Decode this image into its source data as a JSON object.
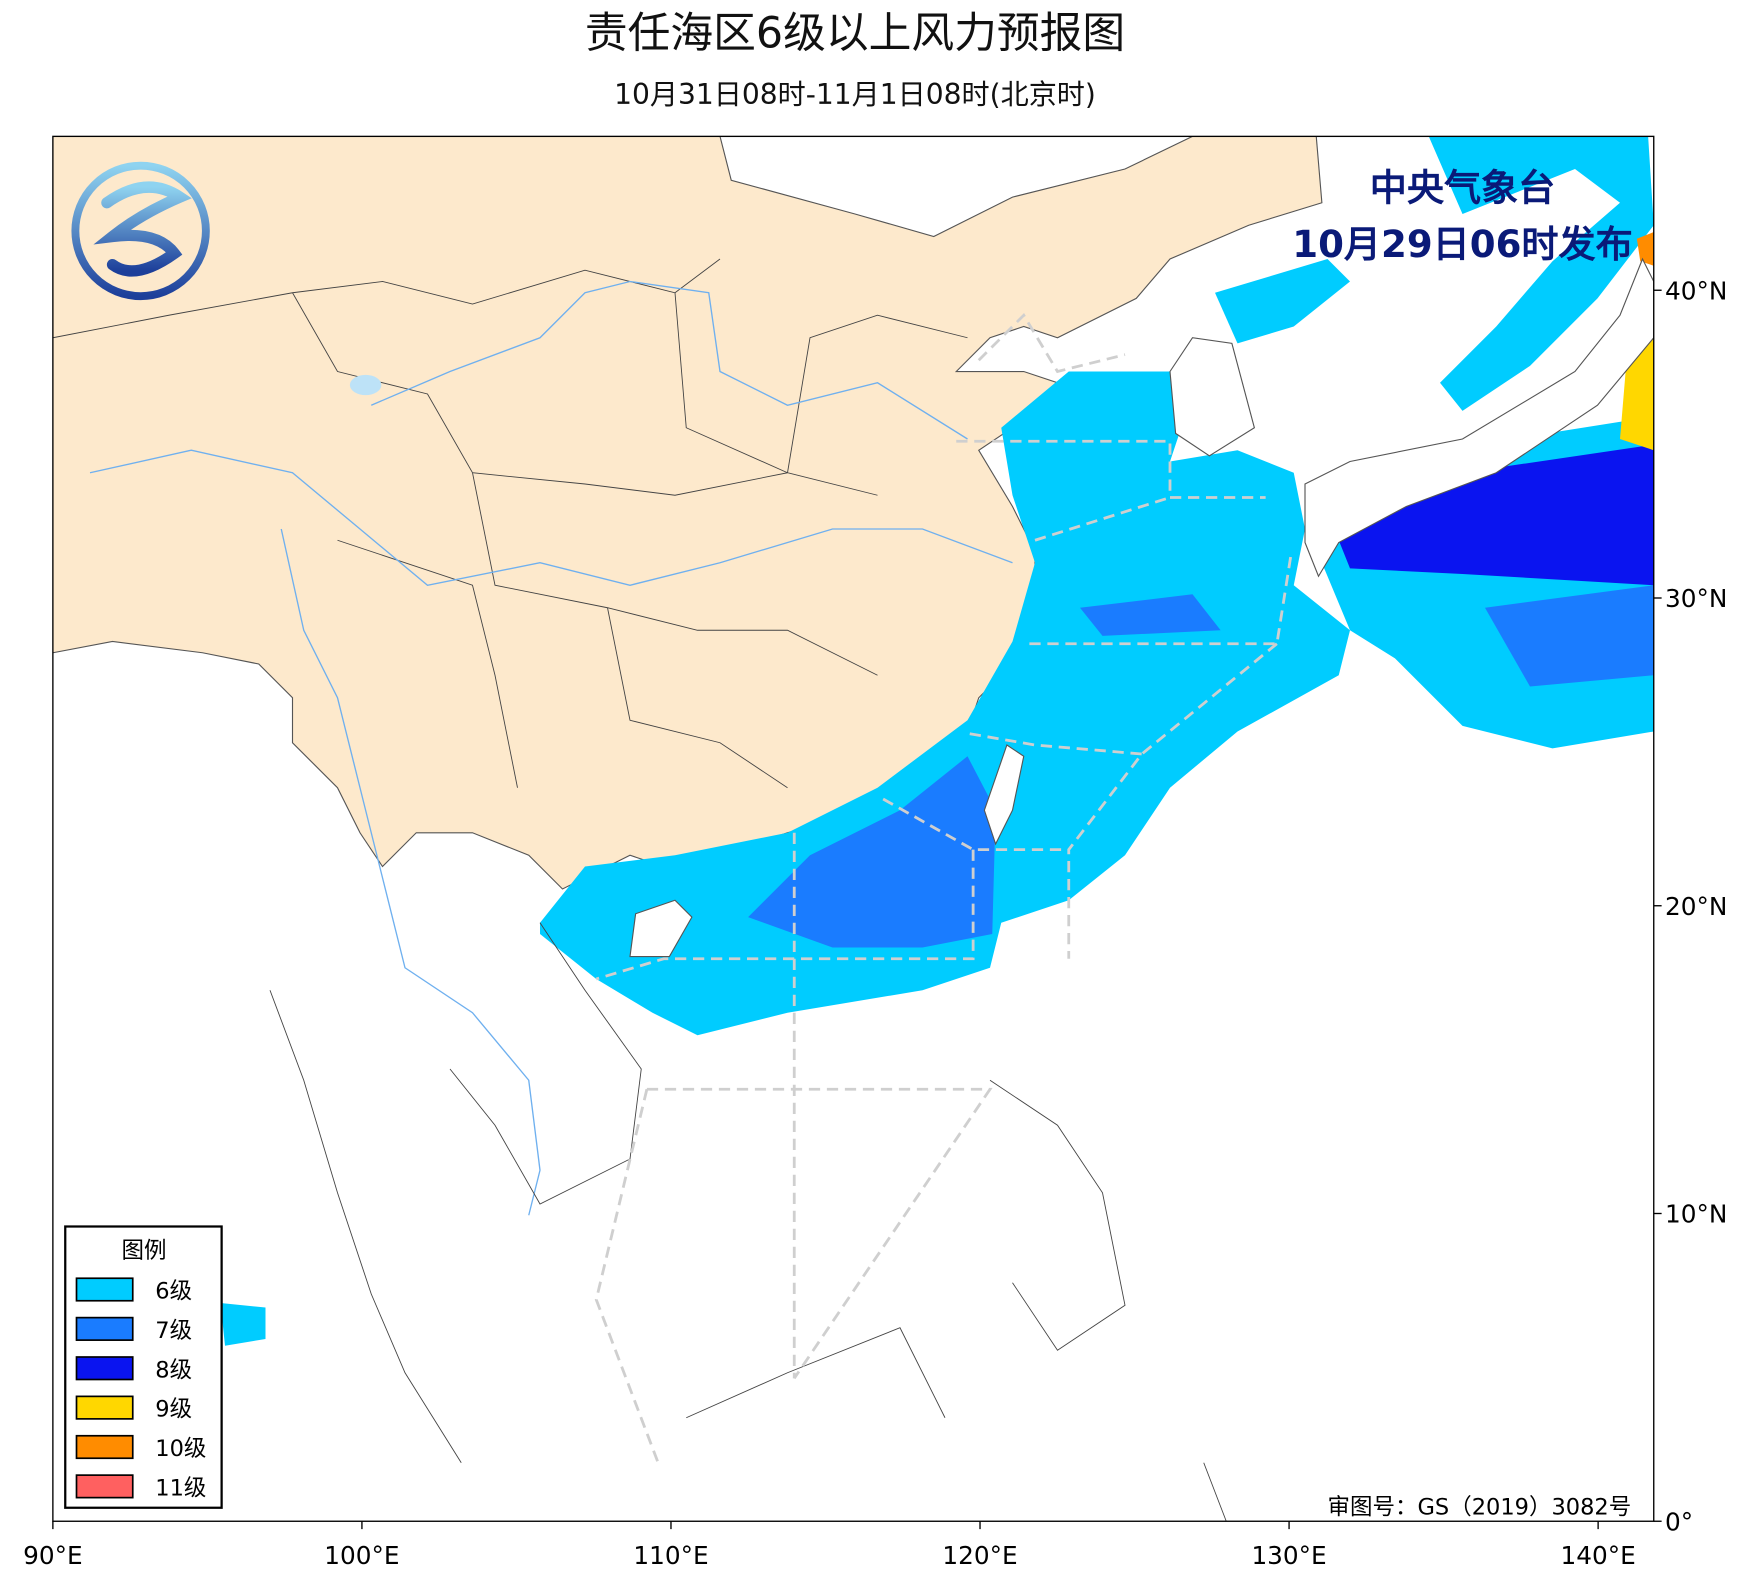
{
  "header": {
    "title": "责任海区6级以上风力预报图",
    "subtitle": "10月31日08时-11月1日08时(北京时)"
  },
  "issuer": {
    "agency": "中央气象台",
    "issued": "10月29日06时发布"
  },
  "legend": {
    "title": "图例",
    "items": [
      {
        "label": "6级",
        "color": "#00ccff"
      },
      {
        "label": "7级",
        "color": "#1a7cff"
      },
      {
        "label": "8级",
        "color": "#0a14f0"
      },
      {
        "label": "9级",
        "color": "#ffd700"
      },
      {
        "label": "10级",
        "color": "#ff8c00"
      },
      {
        "label": "11级",
        "color": "#ff6060"
      }
    ]
  },
  "map": {
    "xlim": [
      90,
      141.8
    ],
    "ylim": [
      0,
      45
    ],
    "xticks": [
      {
        "value": 90,
        "label": "90°E"
      },
      {
        "value": 100,
        "label": "100°E"
      },
      {
        "value": 110,
        "label": "110°E"
      },
      {
        "value": 120,
        "label": "120°E"
      },
      {
        "value": 130,
        "label": "130°E"
      },
      {
        "value": 140,
        "label": "140°E"
      }
    ],
    "yticks": [
      {
        "value": 0,
        "label": "0°"
      },
      {
        "value": 10,
        "label": "10°N"
      },
      {
        "value": 20,
        "label": "20°N"
      },
      {
        "value": 30,
        "label": "30°N"
      },
      {
        "value": 40,
        "label": "40°N"
      }
    ]
  },
  "footer": {
    "approval": "审图号：GS（2019）3082号"
  }
}
